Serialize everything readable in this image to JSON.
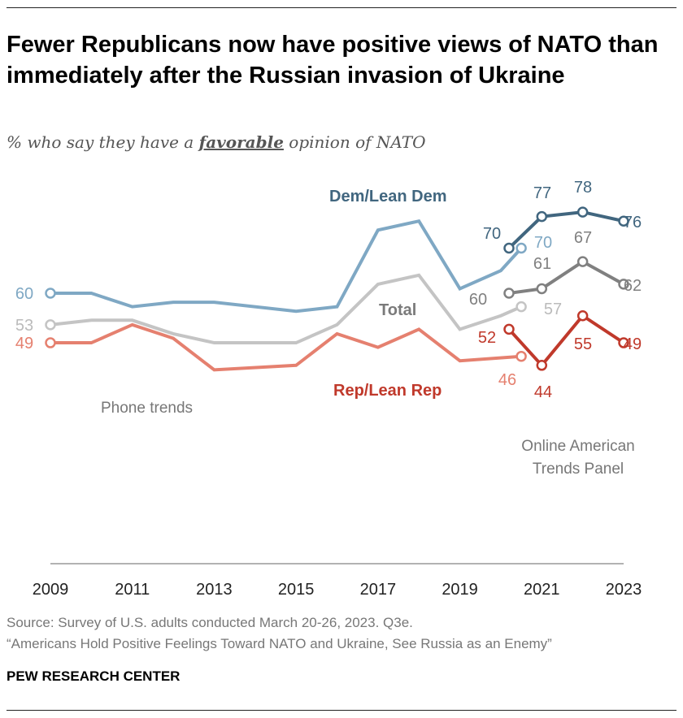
{
  "title": "Fewer Republicans now have positive views of NATO than immediately after the Russian invasion of Ukraine",
  "subtitle": {
    "before": "% who say they have a ",
    "emphasis": "favorable",
    "after": " opinion of NATO"
  },
  "annotations": {
    "phone": "Phone trends",
    "online_line1": "Online American",
    "online_line2": "Trends Panel"
  },
  "source": "Source: Survey of U.S. adults conducted March 20-26, 2023. Q3e.",
  "report": "“Americans Hold Positive Feelings Toward NATO and Ukraine, See Russia as an Enemy”",
  "brand": "PEW RESEARCH CENTER",
  "chart_data": {
    "type": "line",
    "ylim": [
      0,
      100
    ],
    "xlim": [
      2009,
      2023
    ],
    "x_ticks": [
      "2009",
      "2011",
      "2013",
      "2015",
      "2017",
      "2019",
      "2021",
      "2023"
    ],
    "grid": false,
    "series": [
      {
        "name": "Dem/Lean Dem",
        "mode": "Phone trends",
        "color": "#7fa8c4",
        "x": [
          2009,
          2010,
          2011,
          2012,
          2013,
          2015,
          2016,
          2017,
          2018,
          2019,
          2020,
          2020.5
        ],
        "y": [
          60,
          60,
          57,
          58,
          58,
          56,
          57,
          74,
          76,
          61,
          65,
          70
        ]
      },
      {
        "name": "Total",
        "mode": "Phone trends",
        "color": "#c4c4c4",
        "x": [
          2009,
          2010,
          2011,
          2012,
          2013,
          2015,
          2016,
          2017,
          2018,
          2019,
          2020,
          2020.5
        ],
        "y": [
          53,
          54,
          54,
          51,
          49,
          49,
          53,
          62,
          64,
          52,
          55,
          57
        ]
      },
      {
        "name": "Rep/Lean Rep",
        "mode": "Phone trends",
        "color": "#e5806f",
        "x": [
          2009,
          2010,
          2011,
          2012,
          2013,
          2015,
          2016,
          2017,
          2018,
          2019,
          2020.5
        ],
        "y": [
          49,
          49,
          53,
          50,
          43,
          44,
          51,
          48,
          52,
          45,
          46
        ]
      },
      {
        "name": "Dem/Lean Dem",
        "mode": "Online American Trends Panel",
        "color": "#41667f",
        "x": [
          2020.2,
          2021,
          2022,
          2023
        ],
        "y": [
          70,
          77,
          78,
          76
        ]
      },
      {
        "name": "Total",
        "mode": "Online American Trends Panel",
        "color": "#808080",
        "x": [
          2020.2,
          2021,
          2022,
          2023
        ],
        "y": [
          60,
          61,
          67,
          62
        ]
      },
      {
        "name": "Rep/Lean Rep",
        "mode": "Online American Trends Panel",
        "color": "#c0392b",
        "x": [
          2020.2,
          2021,
          2022,
          2023
        ],
        "y": [
          52,
          44,
          55,
          49
        ]
      }
    ],
    "data_labels": {
      "phone_dem": [
        "60",
        "70"
      ],
      "phone_total": [
        "53",
        "57"
      ],
      "phone_rep": [
        "49",
        "46"
      ],
      "atp_dem": [
        "70",
        "77",
        "78",
        "76"
      ],
      "atp_total": [
        "60",
        "61",
        "67",
        "62"
      ],
      "atp_rep": [
        "52",
        "44",
        "55",
        "49"
      ]
    },
    "series_labels": {
      "dem": "Dem/Lean Dem",
      "total": "Total",
      "rep": "Rep/Lean Rep"
    }
  }
}
